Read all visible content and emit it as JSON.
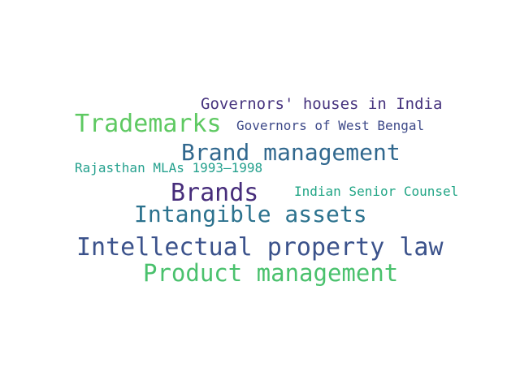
{
  "words": [
    {
      "text": "Governors' houses in India",
      "color": "#46337e"
    },
    {
      "text": "Trademarks",
      "color": "#5ec962"
    },
    {
      "text": "Governors of West Bengal",
      "color": "#3e4a89"
    },
    {
      "text": "Brand management",
      "color": "#31688e"
    },
    {
      "text": "Rajasthan MLAs 1993–1998",
      "color": "#25a18e"
    },
    {
      "text": "Brands",
      "color": "#472d7b"
    },
    {
      "text": "Indian Senior Counsel",
      "color": "#21a585"
    },
    {
      "text": "Intangible assets",
      "color": "#2c728e"
    },
    {
      "text": "Intellectual property law",
      "color": "#3b528b"
    },
    {
      "text": "Product management",
      "color": "#4ac16d"
    }
  ]
}
